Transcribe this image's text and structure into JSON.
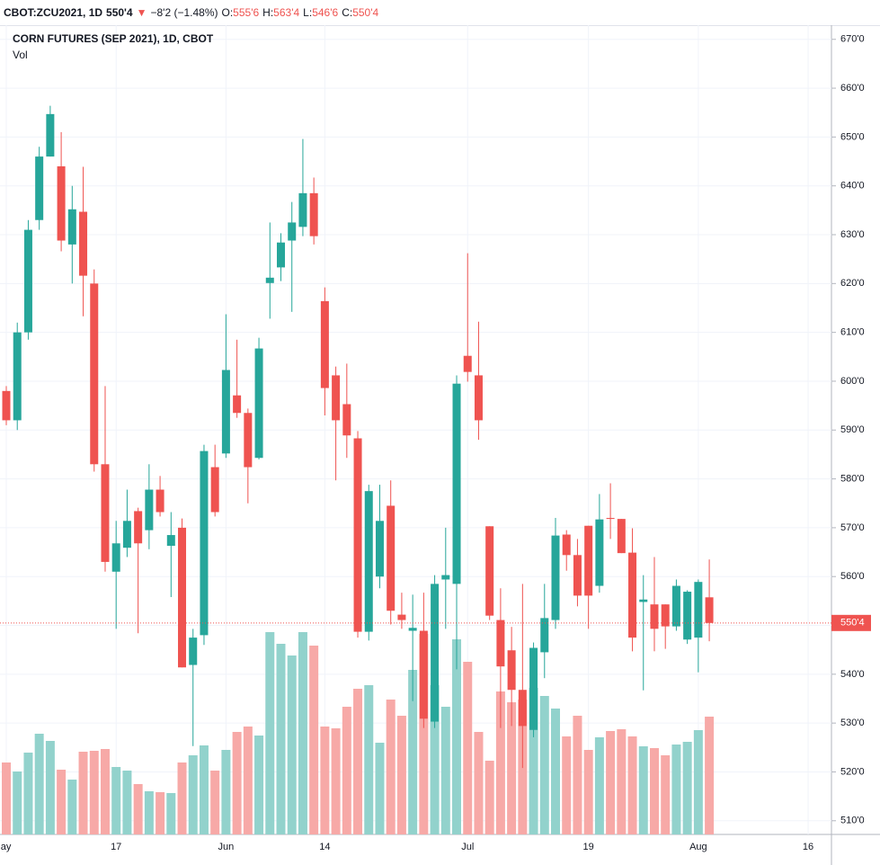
{
  "header": {
    "symbol": "CBOT:ZCU2021, 1D",
    "price": "550'4",
    "arrow": "▼",
    "change": "−8'2 (−1.48%)",
    "o_label": "O:",
    "o": "555'6",
    "h_label": "H:",
    "h": "563'4",
    "l_label": "L:",
    "l": "546'6",
    "c_label": "C:",
    "c": "550'4"
  },
  "chart_data": {
    "type": "candlestick",
    "title": "CORN FUTURES (SEP 2021), 1D, CBOT",
    "volume_label": "Vol",
    "up_color": "#26a69a",
    "down_color": "#ef5350",
    "volume_up_color": "#92d2cc",
    "volume_down_color": "#f7a9a7",
    "grid": true,
    "categories": [
      "May",
      null,
      null,
      null,
      null,
      null,
      null,
      null,
      null,
      null,
      "17",
      null,
      null,
      null,
      null,
      null,
      null,
      null,
      null,
      null,
      "Jun",
      null,
      null,
      null,
      null,
      null,
      null,
      null,
      null,
      "14",
      null,
      null,
      null,
      null,
      null,
      null,
      null,
      null,
      null,
      null,
      null,
      null,
      "Jul",
      null,
      null,
      null,
      null,
      null,
      null,
      null,
      null,
      null,
      null,
      "19",
      null,
      null,
      null,
      null,
      null,
      null,
      null,
      null,
      null,
      "Aug",
      null,
      null,
      null,
      null,
      null,
      null,
      null,
      null,
      null,
      "16"
    ],
    "open": [
      598,
      592,
      610,
      633,
      646,
      644,
      628,
      634.7,
      620,
      583,
      561,
      565.9,
      573.4,
      569.5,
      577.8,
      566.3,
      570,
      541.9,
      548,
      582.4,
      585.2,
      597.1,
      593.5,
      584.3,
      620.1,
      623.3,
      628.8,
      631.6,
      638.5,
      616.4,
      601.2,
      595.3,
      588.3,
      548.7,
      560,
      574.5,
      552.2,
      548.9,
      548.9,
      530.3,
      559.4,
      558.5,
      605.2,
      601.2,
      570.3,
      551.1,
      544.9,
      536.8,
      528.6,
      544.5,
      551.1,
      568.6,
      564.4,
      570.4,
      558.1,
      572,
      571.8,
      564.9,
      554.8,
      554.3,
      554.3,
      549.8,
      547.1,
      547.5,
      555.75,
      null,
      null,
      null,
      null,
      null,
      null,
      null,
      null,
      null
    ],
    "high": [
      599,
      612,
      633,
      648,
      656.4,
      651,
      640,
      643.9,
      622.9,
      599,
      571.4,
      577.8,
      574.1,
      583,
      580.6,
      573.2,
      571.9,
      549.3,
      587,
      587,
      613.7,
      608.5,
      594.4,
      608.9,
      632.5,
      630.3,
      636.7,
      649.6,
      641.7,
      619.2,
      603,
      603.6,
      589.8,
      578.8,
      578.8,
      579.7,
      556.7,
      556.3,
      556.7,
      560.3,
      570,
      601.2,
      626.2,
      612.2,
      570.3,
      557.6,
      549.7,
      558.5,
      546.5,
      558.5,
      572,
      569.5,
      567.7,
      570.4,
      576.9,
      579.1,
      571.8,
      569.9,
      560.3,
      564,
      554.3,
      559.4,
      557.2,
      559.4,
      563.5,
      null,
      null,
      null,
      null,
      null,
      null,
      null,
      null,
      null
    ],
    "low": [
      591,
      590,
      608.5,
      631,
      646,
      626.6,
      620,
      613.3,
      581.5,
      561,
      549.3,
      564,
      548.4,
      565.6,
      572.3,
      555.8,
      541.4,
      525.3,
      546,
      572.3,
      584.3,
      592.5,
      575,
      584,
      612.8,
      620.5,
      614.2,
      629.7,
      628,
      593,
      579.7,
      584.3,
      547.5,
      546.9,
      557.6,
      550.2,
      549.3,
      534.5,
      529,
      529,
      549.3,
      541,
      599.9,
      588,
      551.1,
      529,
      529.4,
      520.8,
      527.1,
      539.2,
      549.3,
      561.2,
      553.9,
      549.3,
      556.7,
      567.7,
      564.8,
      544.7,
      536.7,
      544.7,
      545.2,
      548.9,
      546.2,
      540.4,
      546.75,
      null,
      null,
      null,
      null,
      null,
      null,
      null,
      null,
      null
    ],
    "close": [
      592,
      610,
      631,
      646,
      654.7,
      628.8,
      635.2,
      621.6,
      583,
      563,
      566.8,
      571.4,
      566.8,
      577.8,
      573.2,
      568.5,
      541.4,
      547.5,
      585.7,
      573.2,
      602.3,
      593.5,
      582.4,
      606.7,
      621.2,
      628.4,
      632.5,
      638.5,
      629.7,
      598.6,
      592,
      588.9,
      548.7,
      577.5,
      571.4,
      553,
      551.1,
      549.5,
      530.9,
      558.5,
      560.3,
      599.5,
      601.9,
      592,
      552,
      541.6,
      536.8,
      529.4,
      545.4,
      551.5,
      568.4,
      564.4,
      556.1,
      556.1,
      571.7,
      571.8,
      564.8,
      547.5,
      555.3,
      549.3,
      549.8,
      558.1,
      556.9,
      558.9,
      550.5,
      null,
      null,
      null,
      null,
      null,
      null,
      null,
      null,
      null
    ],
    "volume": [
      80,
      70,
      91,
      112,
      104,
      72,
      61,
      92,
      93,
      95,
      75,
      71,
      56,
      48,
      47,
      46,
      80,
      88,
      99,
      71,
      94,
      114,
      120,
      110,
      225,
      212,
      199,
      225,
      210,
      120,
      118,
      142,
      162,
      166,
      102,
      150,
      132,
      183,
      223,
      166,
      142,
      217,
      192,
      114,
      82,
      159,
      147,
      150,
      163,
      154,
      140,
      109,
      132,
      94,
      108,
      115,
      117,
      109,
      98,
      96,
      88,
      100,
      103,
      116,
      131,
      null,
      null,
      null,
      null,
      null,
      null,
      null,
      null,
      null
    ],
    "volume_ylim": [
      0,
      900
    ],
    "ylim": [
      507.2,
      672.9
    ],
    "yticks": [
      {
        "value": 510,
        "label": "510'0"
      },
      {
        "value": 520,
        "label": "520'0"
      },
      {
        "value": 530,
        "label": "530'0"
      },
      {
        "value": 540,
        "label": "540'0"
      },
      {
        "value": 550,
        "label": "550'0"
      },
      {
        "value": 560,
        "label": "560'0"
      },
      {
        "value": 570,
        "label": "570'0"
      },
      {
        "value": 580,
        "label": "580'0"
      },
      {
        "value": 590,
        "label": "590'0"
      },
      {
        "value": 600,
        "label": "600'0"
      },
      {
        "value": 610,
        "label": "610'0"
      },
      {
        "value": 620,
        "label": "620'0"
      },
      {
        "value": 630,
        "label": "630'0"
      },
      {
        "value": 640,
        "label": "640'0"
      },
      {
        "value": 650,
        "label": "650'0"
      },
      {
        "value": 660,
        "label": "660'0"
      },
      {
        "value": 670,
        "label": "670'0"
      }
    ],
    "last_price": {
      "value": 550.5,
      "label": "550'4"
    }
  }
}
